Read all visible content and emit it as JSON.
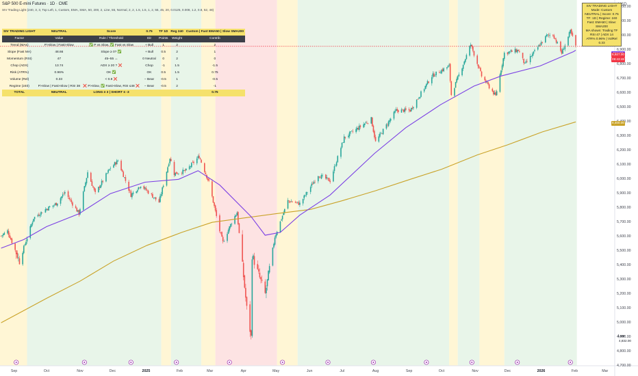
{
  "header": {
    "title": "S&P 500 E-mini Futures · 1D · CME",
    "indicator": "SIV Trading Light (240, 3, 3, Top Left, 1, Custom, EMA, SMA, 50, 200, 2, Line, 55, Normal, 2, 2, 1.5, 1.5, 1, 2, 55, 45, 20, 0.0125, 0.008, 1.2, 0.8, 52, 48)",
    "currency": "USD"
  },
  "y_axis_ticks": [
    "7,200.00",
    "7,100.00",
    "7,000.00",
    "6,900.00",
    "6,800.00",
    "6,700.00",
    "6,600.00",
    "6,500.00",
    "6,400.00",
    "6,300.00",
    "6,200.00",
    "6,100.00",
    "6,000.00",
    "5,900.00",
    "5,800.00",
    "5,700.00",
    "5,600.00",
    "5,500.00",
    "5,400.00",
    "5,300.00",
    "5,200.00",
    "5,100.00",
    "5,000.00",
    "4,900.00",
    "4,800.00",
    "4,700.00"
  ],
  "x_axis_ticks": [
    {
      "label": "Sep",
      "bold": false
    },
    {
      "label": "Oct",
      "bold": false
    },
    {
      "label": "Nov",
      "bold": false
    },
    {
      "label": "Dec",
      "bold": false
    },
    {
      "label": "2025",
      "bold": true
    },
    {
      "label": "Feb",
      "bold": false
    },
    {
      "label": "Mar",
      "bold": false
    },
    {
      "label": "Apr",
      "bold": false
    },
    {
      "label": "May",
      "bold": false
    },
    {
      "label": "Jun",
      "bold": false
    },
    {
      "label": "Jul",
      "bold": false
    },
    {
      "label": "Aug",
      "bold": false
    },
    {
      "label": "Sep",
      "bold": false
    },
    {
      "label": "Oct",
      "bold": false
    },
    {
      "label": "Nov",
      "bold": false
    },
    {
      "label": "Dec",
      "bold": false
    },
    {
      "label": "2026",
      "bold": true
    },
    {
      "label": "Feb",
      "bold": false
    },
    {
      "label": "Mar",
      "bold": false
    }
  ],
  "price_labels": {
    "ema_tag": "EMA50",
    "last_price": "6,927.00",
    "countdown": "09:43:48",
    "low_label": "Low",
    "low_value": "4,832.00",
    "sma_value": "6,400.00"
  },
  "info_box": {
    "lines": [
      "SIV TRADING LIGHT",
      "Mode: Custom",
      "NEUTRAL | Score: 0.75",
      "TF: 1D | Regime: 240",
      "Fast: EMA50 | Slow: SMA200",
      "MA shown: Trading TF",
      "RSI 47 | ADX 14",
      "ATR% 0.96% | VolRel 0.33"
    ]
  },
  "score_table": {
    "title_row": [
      "SIV TRADING LIGHT",
      "NEUTRAL",
      "Score",
      "0.75",
      "TF 1D",
      "Reg 240",
      "Custom | Fast EMA50 | Slow SMA200"
    ],
    "columns": [
      "Factor",
      "Value",
      "Rule / Threshold",
      "Dir",
      "Points",
      "Weight",
      "Contrib"
    ],
    "rows": [
      [
        "Trend (MAs)",
        "P>Slow | Fast>Slow",
        "✅ P vs Slow, ✅ Fast vs Slow",
        "+ Bull",
        "1",
        "2",
        "2"
      ],
      [
        "Slope (Fast MA)",
        "48.66",
        "Slope ≥ 0? ✅",
        "+ Bull",
        "0.5",
        "2",
        "1"
      ],
      [
        "Momentum (RSI)",
        "47",
        "45–55 ↔",
        "0 Neutral",
        "0",
        "2",
        "0"
      ],
      [
        "Chop (ADX)",
        "13.74",
        "ADX ≥ 20 ? ❌",
        "Chop",
        "-1",
        "1.5",
        "-1.5"
      ],
      [
        "Risk (ATR%)",
        "0.96%",
        "OK ✅",
        "OK",
        "0.5",
        "1.5",
        "0.75"
      ],
      [
        "Volume (Rel)",
        "0.33",
        "< 0.8 ❌",
        "− Bear",
        "-0.5",
        "1",
        "-0.5"
      ],
      [
        "Regime (240)",
        "P>Slow | Fast>Slow | RSI 38",
        "❌ P>Slow, ✅ Fast>Slow, RSI ≤48 ❌",
        "− Bear",
        "-0.5",
        "2",
        "-1"
      ]
    ],
    "total_row": [
      "TOTAL",
      "NEUTRAL",
      "LONG ≥ 3 | SHORT ≤ -3",
      "",
      "",
      "",
      "0.75"
    ]
  },
  "colors": {
    "bull": "#26a69a",
    "bear": "#ef5350",
    "fast_ma": "#7b3fe4",
    "slow_ma": "#c9a227",
    "bg_green": "#e8f5e9",
    "bg_red": "#fde3e3",
    "bg_yellow": "#fff6d5",
    "table_yellow": "#f5e16b",
    "price_line": "#f23645"
  },
  "chart_data": {
    "type": "candlestick",
    "symbol": "S&P 500 E-mini Futures",
    "interval": "1D",
    "ylim": [
      4700,
      7250
    ],
    "x_range": [
      "2024-08-19",
      "2026-03-10"
    ],
    "close_path": [
      [
        "2024-08-20",
        5605
      ],
      [
        "2024-08-26",
        5640
      ],
      [
        "2024-09-06",
        5430
      ],
      [
        "2024-09-12",
        5570
      ],
      [
        "2024-09-19",
        5730
      ],
      [
        "2024-09-30",
        5790
      ],
      [
        "2024-10-10",
        5830
      ],
      [
        "2024-10-18",
        5910
      ],
      [
        "2024-10-31",
        5760
      ],
      [
        "2024-11-08",
        6050
      ],
      [
        "2024-11-15",
        5900
      ],
      [
        "2024-11-29",
        6080
      ],
      [
        "2024-12-06",
        6130
      ],
      [
        "2024-12-18",
        5890
      ],
      [
        "2024-12-27",
        5960
      ],
      [
        "2025-01-13",
        5840
      ],
      [
        "2025-01-23",
        6150
      ],
      [
        "2025-01-27",
        6040
      ],
      [
        "2025-02-07",
        6060
      ],
      [
        "2025-02-19",
        6160
      ],
      [
        "2025-02-28",
        5980
      ],
      [
        "2025-03-10",
        5640
      ],
      [
        "2025-03-13",
        5560
      ],
      [
        "2025-03-21",
        5700
      ],
      [
        "2025-03-26",
        5770
      ],
      [
        "2025-04-04",
        5100
      ],
      [
        "2025-04-08",
        4900
      ],
      [
        "2025-04-09",
        5470
      ],
      [
        "2025-04-21",
        5200
      ],
      [
        "2025-04-30",
        5600
      ],
      [
        "2025-05-12",
        5850
      ],
      [
        "2025-05-23",
        5830
      ],
      [
        "2025-06-09",
        6030
      ],
      [
        "2025-06-20",
        5990
      ],
      [
        "2025-07-03",
        6290
      ],
      [
        "2025-07-28",
        6420
      ],
      [
        "2025-08-01",
        6260
      ],
      [
        "2025-08-20",
        6480
      ],
      [
        "2025-09-02",
        6480
      ],
      [
        "2025-09-22",
        6720
      ],
      [
        "2025-10-08",
        6790
      ],
      [
        "2025-10-10",
        6590
      ],
      [
        "2025-10-28",
        6940
      ],
      [
        "2025-11-07",
        6720
      ],
      [
        "2025-11-20",
        6580
      ],
      [
        "2025-11-28",
        6880
      ],
      [
        "2025-12-11",
        6900
      ],
      [
        "2025-12-17",
        6800
      ],
      [
        "2026-01-06",
        7000
      ],
      [
        "2026-01-12",
        7010
      ],
      [
        "2026-01-20",
        6880
      ],
      [
        "2026-01-28",
        7030
      ],
      [
        "2026-02-02",
        6930
      ]
    ],
    "ema50_path": [
      [
        "2024-08-20",
        5520
      ],
      [
        "2024-09-10",
        5580
      ],
      [
        "2024-10-01",
        5670
      ],
      [
        "2024-10-31",
        5760
      ],
      [
        "2024-11-29",
        5900
      ],
      [
        "2024-12-31",
        5980
      ],
      [
        "2025-01-31",
        6000
      ],
      [
        "2025-02-18",
        6060
      ],
      [
        "2025-03-10",
        5960
      ],
      [
        "2025-04-08",
        5740
      ],
      [
        "2025-04-21",
        5610
      ],
      [
        "2025-05-05",
        5630
      ],
      [
        "2025-05-23",
        5750
      ],
      [
        "2025-06-20",
        5890
      ],
      [
        "2025-07-31",
        6180
      ],
      [
        "2025-08-29",
        6360
      ],
      [
        "2025-09-30",
        6520
      ],
      [
        "2025-10-31",
        6650
      ],
      [
        "2025-11-25",
        6720
      ],
      [
        "2025-12-31",
        6790
      ],
      [
        "2026-01-31",
        6890
      ],
      [
        "2026-02-02",
        6900
      ]
    ],
    "sma200_path": [
      [
        "2024-08-20",
        5000
      ],
      [
        "2024-10-01",
        5170
      ],
      [
        "2024-11-01",
        5290
      ],
      [
        "2024-12-02",
        5430
      ],
      [
        "2025-01-02",
        5540
      ],
      [
        "2025-02-03",
        5630
      ],
      [
        "2025-03-03",
        5700
      ],
      [
        "2025-04-01",
        5730
      ],
      [
        "2025-05-01",
        5760
      ],
      [
        "2025-06-02",
        5790
      ],
      [
        "2025-07-01",
        5850
      ],
      [
        "2025-08-01",
        5920
      ],
      [
        "2025-09-02",
        6000
      ],
      [
        "2025-10-01",
        6070
      ],
      [
        "2025-11-03",
        6170
      ],
      [
        "2025-12-01",
        6240
      ],
      [
        "2026-01-02",
        6330
      ],
      [
        "2026-02-02",
        6400
      ]
    ],
    "last_price": 6927.0,
    "low": 4832.0,
    "background_zones": [
      {
        "start": "2024-08-19",
        "end": "2024-09-13",
        "state": "neutral"
      },
      {
        "start": "2024-09-13",
        "end": "2025-01-15",
        "state": "bull"
      },
      {
        "start": "2025-01-15",
        "end": "2025-01-24",
        "state": "neutral"
      },
      {
        "start": "2025-01-24",
        "end": "2025-02-21",
        "state": "bull"
      },
      {
        "start": "2025-02-21",
        "end": "2025-03-06",
        "state": "neutral"
      },
      {
        "start": "2025-03-06",
        "end": "2025-05-02",
        "state": "bear"
      },
      {
        "start": "2025-05-02",
        "end": "2025-05-21",
        "state": "neutral"
      },
      {
        "start": "2025-05-21",
        "end": "2025-10-08",
        "state": "bull"
      },
      {
        "start": "2025-10-08",
        "end": "2025-10-16",
        "state": "neutral"
      },
      {
        "start": "2025-10-16",
        "end": "2025-11-05",
        "state": "bull"
      },
      {
        "start": "2025-11-05",
        "end": "2025-11-28",
        "state": "neutral"
      },
      {
        "start": "2025-11-28",
        "end": "2026-02-03",
        "state": "bull"
      }
    ],
    "event_markers": [
      "2024-09-03",
      "2024-11-05",
      "2024-12-18",
      "2025-01-29",
      "2025-03-19",
      "2025-05-07",
      "2025-06-18",
      "2025-07-30",
      "2025-09-17",
      "2025-10-29",
      "2025-12-10",
      "2026-01-28"
    ]
  }
}
